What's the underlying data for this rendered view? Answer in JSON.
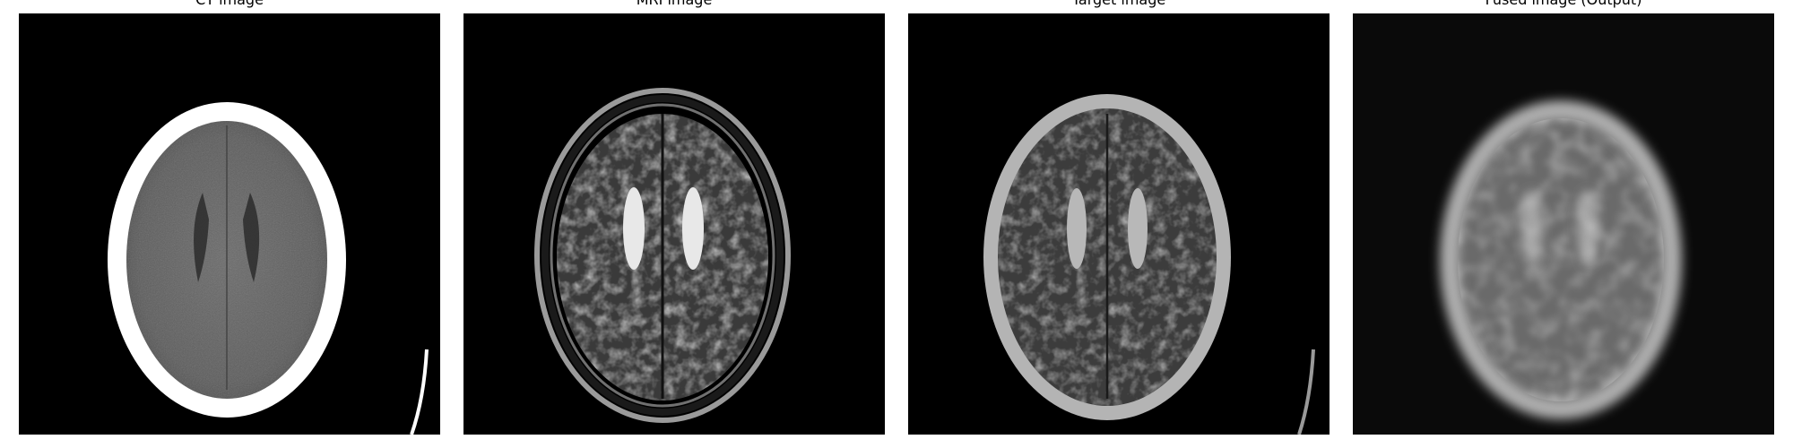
{
  "panels": [
    {
      "id": "ct",
      "title": "CT image"
    },
    {
      "id": "mri",
      "title": "MRI image"
    },
    {
      "id": "target",
      "title": "Target image"
    },
    {
      "id": "fused",
      "title": "Fused image (Output)"
    }
  ],
  "colors": {
    "background": "#000000",
    "figure_background": "#ffffff"
  }
}
